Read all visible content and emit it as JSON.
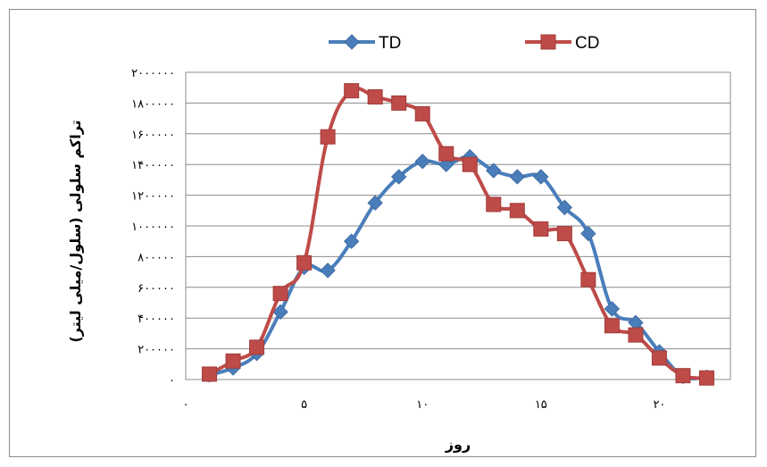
{
  "chart_data": {
    "type": "line",
    "title": "",
    "xlabel": "روز",
    "ylabel": "تراکم سلولی (سلول/میلی لیتر)",
    "xlim": [
      0,
      23
    ],
    "ylim": [
      0,
      2000000
    ],
    "x_ticks": [
      0,
      5,
      10,
      15,
      20
    ],
    "x_tick_labels": [
      "۰",
      "۵",
      "۱۰",
      "۱۵",
      "۲۰"
    ],
    "y_ticks": [
      0,
      200000,
      400000,
      600000,
      800000,
      1000000,
      1200000,
      1400000,
      1600000,
      1800000,
      2000000
    ],
    "y_tick_labels": [
      "۰",
      "۲۰۰۰۰۰",
      "۴۰۰۰۰۰",
      "۶۰۰۰۰۰",
      "۸۰۰۰۰۰",
      "۱۰۰۰۰۰۰",
      "۱۲۰۰۰۰۰",
      "۱۴۰۰۰۰۰",
      "۱۶۰۰۰۰۰",
      "۱۸۰۰۰۰۰",
      "۲۰۰۰۰۰۰"
    ],
    "grid": "horizontal",
    "legend_position": "top",
    "series": [
      {
        "name": "TD",
        "color": "#4a7ebb",
        "marker": "diamond",
        "x": [
          1,
          2,
          3,
          4,
          5,
          6,
          7,
          8,
          9,
          10,
          11,
          12,
          13,
          14,
          15,
          16,
          17,
          18,
          19,
          20,
          21,
          22
        ],
        "y": [
          30000,
          75000,
          170000,
          440000,
          730000,
          710000,
          900000,
          1150000,
          1320000,
          1420000,
          1400000,
          1450000,
          1360000,
          1320000,
          1320000,
          1120000,
          950000,
          460000,
          370000,
          180000,
          20000,
          15000
        ]
      },
      {
        "name": "CD",
        "color": "#be4b48",
        "marker": "square",
        "x": [
          1,
          2,
          3,
          4,
          5,
          6,
          7,
          8,
          9,
          10,
          11,
          12,
          13,
          14,
          15,
          16,
          17,
          18,
          19,
          20,
          21,
          22
        ],
        "y": [
          35000,
          120000,
          210000,
          560000,
          760000,
          1580000,
          1880000,
          1840000,
          1800000,
          1730000,
          1470000,
          1400000,
          1140000,
          1100000,
          980000,
          950000,
          650000,
          350000,
          290000,
          140000,
          25000,
          10000
        ]
      }
    ]
  }
}
